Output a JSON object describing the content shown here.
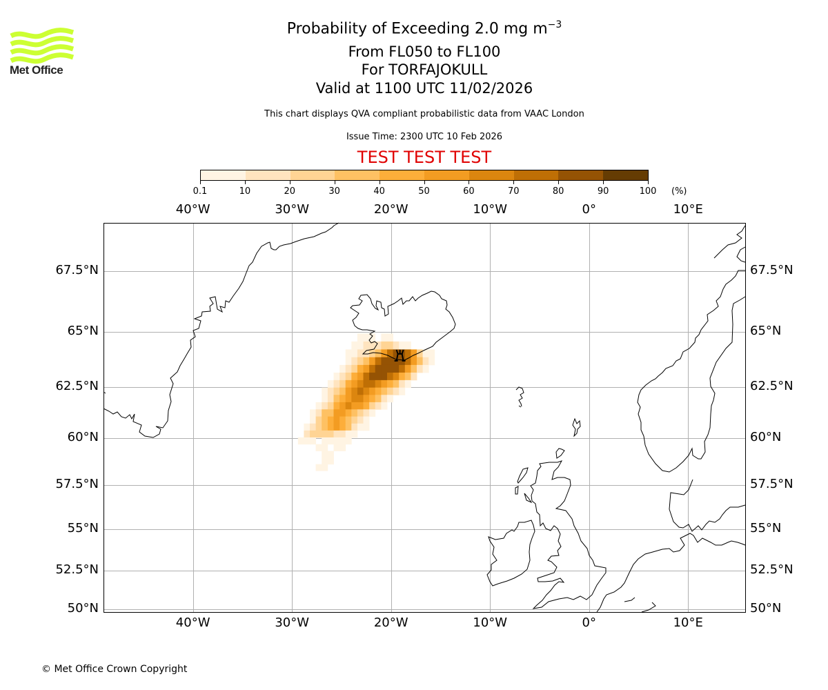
{
  "logo": {
    "text": "Met Office",
    "color": "#ccff33"
  },
  "title": {
    "line1_main": "Probability of Exceeding 2.0 mg m",
    "line1_sup": "−3",
    "line2": "From FL050 to FL100",
    "line3": "For TORFAJOKULL",
    "line4": "Valid at 1100 UTC 11/02/2026"
  },
  "subtitle": "This chart displays QVA compliant probabilistic data from VAAC London",
  "issue_time": "Issue Time: 2300 UTC 10 Feb 2026",
  "test_banner": {
    "text": "TEST TEST TEST",
    "color": "#e00000"
  },
  "colorbar": {
    "unit": "(%)",
    "ticks": [
      "0.1",
      "10",
      "20",
      "30",
      "40",
      "50",
      "60",
      "70",
      "80",
      "90",
      "100"
    ],
    "colors": [
      "#fff4e3",
      "#ffe4bf",
      "#ffd494",
      "#fec163",
      "#fdae3a",
      "#f39c22",
      "#dc860f",
      "#bf6f05",
      "#955304",
      "#653c03"
    ]
  },
  "footer": {
    "copyright": "© Met Office Crown Copyright"
  },
  "chart_data": {
    "type": "heatmap",
    "title": "Probability of Exceeding 2.0 mg m−3",
    "projection": "mercator",
    "xlim": [
      -49,
      15.8
    ],
    "ylim": [
      49.8,
      69.3
    ],
    "x_ticks": [
      -40,
      -30,
      -20,
      -10,
      0,
      10
    ],
    "x_tick_labels": [
      "40°W",
      "30°W",
      "20°W",
      "10°W",
      "0°",
      "10°E"
    ],
    "y_ticks": [
      67.5,
      65,
      62.5,
      60,
      57.5,
      55,
      52.5,
      50
    ],
    "y_tick_labels": [
      "67.5°N",
      "65°N",
      "62.5°N",
      "60°N",
      "57.5°N",
      "55°N",
      "52.5°N",
      "50°N"
    ],
    "grid": true,
    "colorbar_levels": [
      0.1,
      10,
      20,
      30,
      40,
      50,
      60,
      70,
      80,
      90,
      100
    ],
    "volcano": {
      "name": "TORFAJOKULL",
      "lon": -19.1,
      "lat": 63.9
    },
    "cell_size_deg": [
      0.6,
      0.35
    ],
    "plume_rows": [
      {
        "lat": 64.75,
        "lon_start": -23.4,
        "levels": [
          1,
          1,
          1,
          0,
          1,
          1
        ]
      },
      {
        "lat": 64.4,
        "lon_start": -24.0,
        "levels": [
          1,
          1,
          2,
          2,
          2,
          3,
          3,
          2,
          1,
          1
        ]
      },
      {
        "lat": 64.05,
        "lon_start": -24.6,
        "levels": [
          1,
          1,
          2,
          2,
          3,
          4,
          6,
          8,
          9,
          9,
          8,
          6,
          3,
          1,
          1
        ]
      },
      {
        "lat": 63.7,
        "lon_start": -24.6,
        "levels": [
          1,
          2,
          3,
          4,
          6,
          8,
          9,
          9,
          9,
          9,
          8,
          6,
          4,
          2,
          1
        ]
      },
      {
        "lat": 63.35,
        "lon_start": -25.2,
        "levels": [
          1,
          2,
          3,
          5,
          6,
          8,
          9,
          9,
          9,
          9,
          8,
          6,
          4,
          2,
          1
        ]
      },
      {
        "lat": 63.0,
        "lon_start": -25.8,
        "levels": [
          1,
          2,
          3,
          5,
          6,
          8,
          9,
          9,
          9,
          8,
          7,
          5,
          4,
          2
        ]
      },
      {
        "lat": 62.65,
        "lon_start": -26.4,
        "levels": [
          1,
          2,
          3,
          5,
          6,
          7,
          8,
          8,
          7,
          6,
          5,
          4,
          2,
          1
        ]
      },
      {
        "lat": 62.3,
        "lon_start": -27.0,
        "levels": [
          1,
          2,
          3,
          4,
          6,
          7,
          8,
          7,
          6,
          5,
          4,
          3,
          2,
          1
        ]
      },
      {
        "lat": 61.95,
        "lon_start": -27.0,
        "levels": [
          1,
          2,
          4,
          5,
          6,
          7,
          7,
          6,
          5,
          4,
          2,
          1
        ]
      },
      {
        "lat": 61.6,
        "lon_start": -27.6,
        "levels": [
          1,
          2,
          3,
          5,
          6,
          7,
          6,
          6,
          5,
          3,
          2,
          1
        ]
      },
      {
        "lat": 61.25,
        "lon_start": -28.2,
        "levels": [
          1,
          2,
          4,
          4,
          6,
          6,
          5,
          4,
          3,
          2,
          1
        ]
      },
      {
        "lat": 60.9,
        "lon_start": -28.2,
        "levels": [
          1,
          3,
          4,
          5,
          6,
          5,
          4,
          3,
          2,
          1
        ]
      },
      {
        "lat": 60.55,
        "lon_start": -28.8,
        "levels": [
          1,
          2,
          3,
          4,
          5,
          6,
          5,
          4,
          2,
          1,
          1
        ]
      },
      {
        "lat": 60.2,
        "lon_start": -28.8,
        "levels": [
          2,
          3,
          3,
          3,
          3,
          2,
          2,
          1,
          1
        ]
      },
      {
        "lat": 59.85,
        "lon_start": -29.4,
        "levels": [
          1,
          1,
          1,
          0,
          1,
          1,
          1,
          1,
          1
        ]
      },
      {
        "lat": 59.5,
        "lon_start": -28.2,
        "levels": [
          0,
          1,
          1,
          0,
          1,
          1
        ]
      },
      {
        "lat": 59.15,
        "lon_start": -27.0,
        "levels": [
          1,
          1
        ]
      },
      {
        "lat": 58.8,
        "lon_start": -27.0,
        "levels": [
          1,
          1
        ]
      },
      {
        "lat": 58.45,
        "lon_start": -27.6,
        "levels": [
          1,
          1
        ]
      }
    ]
  }
}
